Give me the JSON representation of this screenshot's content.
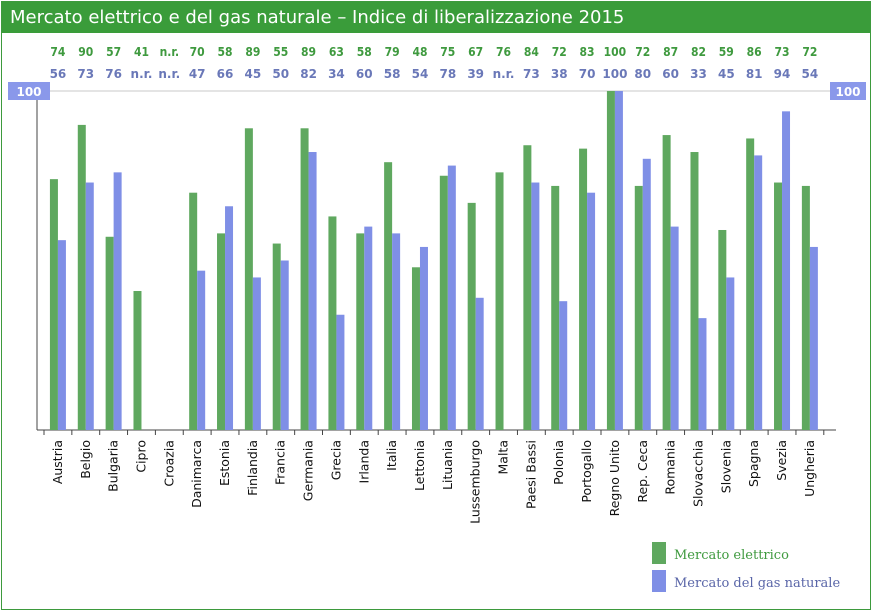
{
  "chart_data": {
    "type": "bar",
    "title": "Mercato elettrico e del gas naturale – Indice di liberalizzazione 2015",
    "ylim": [
      0,
      100
    ],
    "reference_label": "100",
    "categories": [
      "Austria",
      "Belgio",
      "Bulgaria",
      "Cipro",
      "Croazia",
      "Danimarca",
      "Estonia",
      "Finlandia",
      "Francia",
      "Germania",
      "Grecia",
      "Irlanda",
      "Italia",
      "Lettonia",
      "Lituania",
      "Lussemburgo",
      "Malta",
      "Paesi Bassi",
      "Polonia",
      "Portogallo",
      "Regno Unito",
      "Rep. Ceca",
      "Romania",
      "Slovacchia",
      "Slovenia",
      "Spagna",
      "Svezia",
      "Ungheria"
    ],
    "series": [
      {
        "name": "Mercato elettrico",
        "color": "#5fa85f",
        "values": [
          74,
          90,
          57,
          41,
          null,
          70,
          58,
          89,
          55,
          89,
          63,
          58,
          79,
          48,
          75,
          67,
          76,
          84,
          72,
          83,
          100,
          72,
          87,
          82,
          59,
          86,
          73,
          72
        ],
        "labels": [
          "74",
          "90",
          "57",
          "41",
          "n.r.",
          "70",
          "58",
          "89",
          "55",
          "89",
          "63",
          "58",
          "79",
          "48",
          "75",
          "67",
          "76",
          "84",
          "72",
          "83",
          "100",
          "72",
          "87",
          "82",
          "59",
          "86",
          "73",
          "72"
        ]
      },
      {
        "name": "Mercato del gas naturale",
        "color": "#7f8fe6",
        "values": [
          56,
          73,
          76,
          null,
          null,
          47,
          66,
          45,
          50,
          82,
          34,
          60,
          58,
          54,
          78,
          39,
          null,
          73,
          38,
          70,
          100,
          80,
          60,
          33,
          45,
          81,
          94,
          54
        ],
        "labels": [
          "56",
          "73",
          "76",
          "n.r.",
          "n.r.",
          "47",
          "66",
          "45",
          "50",
          "82",
          "34",
          "60",
          "58",
          "54",
          "78",
          "39",
          "n.r.",
          "73",
          "38",
          "70",
          "100",
          "80",
          "60",
          "33",
          "45",
          "81",
          "94",
          "54"
        ]
      }
    ],
    "legend": "bottom-right"
  }
}
